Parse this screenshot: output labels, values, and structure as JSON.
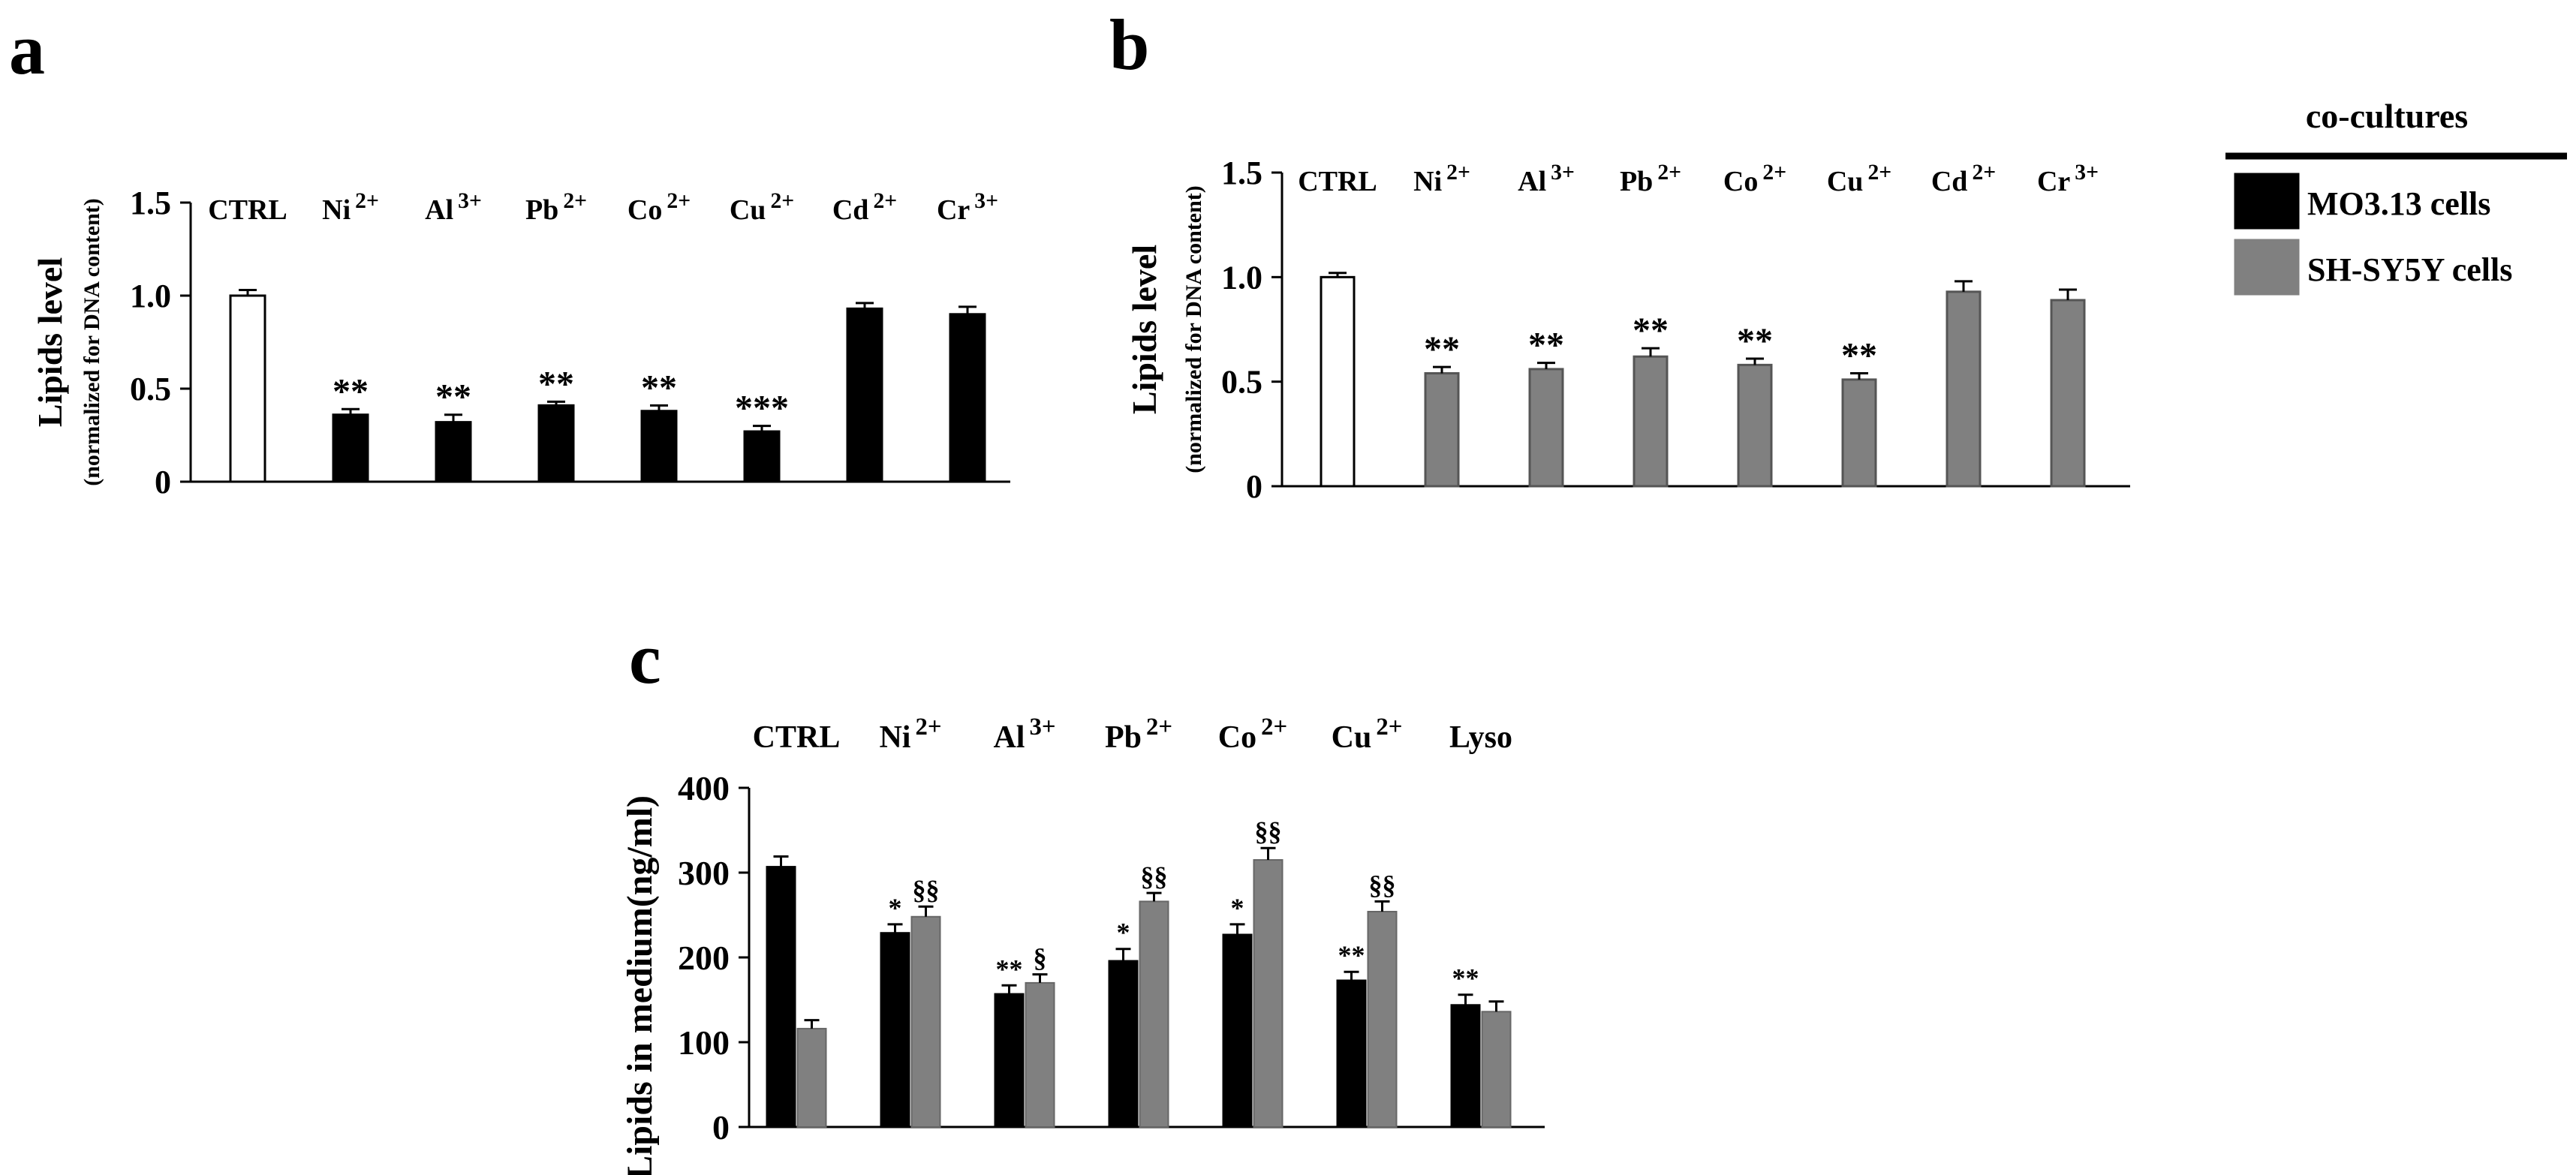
{
  "colors": {
    "mo313": "#000000",
    "shsy5y": "#808080",
    "ctrl": "#ffffff"
  },
  "legend": {
    "title": "co-cultures",
    "items": [
      {
        "label": "MO3.13 cells",
        "color": "#000000"
      },
      {
        "label": "SH-SY5Y cells",
        "color": "#808080"
      }
    ]
  },
  "chart_data": [
    {
      "panel": "a",
      "type": "bar",
      "ylabel": "Lipids level",
      "ylabel_sub": "(normalized for DNA content)",
      "ylim": [
        0,
        1.5
      ],
      "yticks": [
        "0",
        "0.5",
        "1.0",
        "1.5"
      ],
      "categories": [
        {
          "base": "CTRL",
          "sup": ""
        },
        {
          "base": "Ni",
          "sup": "2+"
        },
        {
          "base": "Al",
          "sup": "3+"
        },
        {
          "base": "Pb",
          "sup": "2+"
        },
        {
          "base": "Co",
          "sup": "2+"
        },
        {
          "base": "Cu",
          "sup": "2+"
        },
        {
          "base": "Cd",
          "sup": "2+"
        },
        {
          "base": "Cr",
          "sup": "3+"
        }
      ],
      "values": [
        1.0,
        0.36,
        0.32,
        0.41,
        0.38,
        0.27,
        0.93,
        0.9
      ],
      "errors": [
        0.03,
        0.03,
        0.04,
        0.02,
        0.03,
        0.03,
        0.03,
        0.04
      ],
      "significance": [
        "",
        "**",
        "**",
        "**",
        "**",
        "***",
        "",
        ""
      ],
      "bar_colors": [
        "#ffffff",
        "#000000",
        "#000000",
        "#000000",
        "#000000",
        "#000000",
        "#000000",
        "#000000"
      ]
    },
    {
      "panel": "b",
      "type": "bar",
      "ylabel": "Lipids level",
      "ylabel_sub": "(normalized for DNA content)",
      "ylim": [
        0,
        1.5
      ],
      "yticks": [
        "0",
        "0.5",
        "1.0",
        "1.5"
      ],
      "categories": [
        {
          "base": "CTRL",
          "sup": ""
        },
        {
          "base": "Ni",
          "sup": "2+"
        },
        {
          "base": "Al",
          "sup": "3+"
        },
        {
          "base": "Pb",
          "sup": "2+"
        },
        {
          "base": "Co",
          "sup": "2+"
        },
        {
          "base": "Cu",
          "sup": "2+"
        },
        {
          "base": "Cd",
          "sup": "2+"
        },
        {
          "base": "Cr",
          "sup": "3+"
        }
      ],
      "values": [
        1.0,
        0.54,
        0.56,
        0.62,
        0.58,
        0.51,
        0.93,
        0.89
      ],
      "errors": [
        0.02,
        0.03,
        0.03,
        0.04,
        0.03,
        0.03,
        0.05,
        0.05
      ],
      "significance": [
        "",
        "**",
        "**",
        "**",
        "**",
        "**",
        "",
        ""
      ],
      "bar_colors": [
        "#ffffff",
        "#808080",
        "#808080",
        "#808080",
        "#808080",
        "#808080",
        "#808080",
        "#808080"
      ]
    },
    {
      "panel": "c",
      "type": "bar",
      "ylabel": "Lipids in medium(ng/ml)",
      "ylim": [
        0,
        400
      ],
      "yticks": [
        "0",
        "100",
        "200",
        "300",
        "400"
      ],
      "categories": [
        {
          "base": "CTRL",
          "sup": ""
        },
        {
          "base": "Ni",
          "sup": "2+"
        },
        {
          "base": "Al",
          "sup": "3+"
        },
        {
          "base": "Pb",
          "sup": "2+"
        },
        {
          "base": "Co",
          "sup": "2+"
        },
        {
          "base": "Cu",
          "sup": "2+"
        },
        {
          "base": "Lyso",
          "sup": ""
        }
      ],
      "series": [
        {
          "name": "MO3.13 cells",
          "color": "#000000",
          "values": [
            307,
            229,
            157,
            196,
            227,
            173,
            144
          ],
          "errors": [
            12,
            10,
            10,
            14,
            12,
            10,
            12
          ],
          "significance": [
            "",
            "*",
            "**",
            "*",
            "*",
            "**",
            "**"
          ]
        },
        {
          "name": "SH-SY5Y cells",
          "color": "#808080",
          "values": [
            116,
            248,
            170,
            266,
            315,
            254,
            136
          ],
          "errors": [
            10,
            12,
            10,
            10,
            14,
            12,
            12
          ],
          "significance": [
            "",
            "§§",
            "§",
            "§§",
            "§§",
            "§§",
            ""
          ]
        }
      ]
    }
  ]
}
